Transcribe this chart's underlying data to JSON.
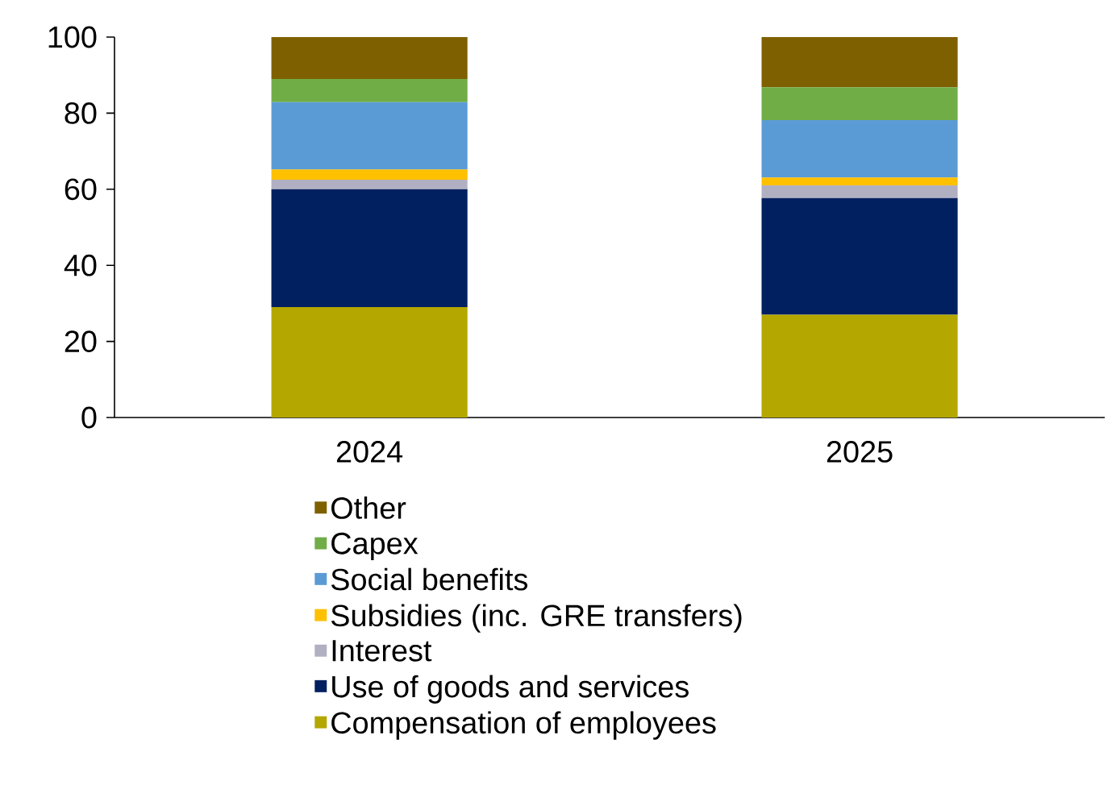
{
  "chart_data": {
    "type": "bar",
    "stacked": true,
    "categories": [
      "2024",
      "2025"
    ],
    "series": [
      {
        "name": "Compensation of employees",
        "color": "#b4a700",
        "values": [
          29,
          27
        ]
      },
      {
        "name": "Use of goods and services",
        "color": "#002060",
        "values": [
          31,
          30.7
        ]
      },
      {
        "name": "Interest",
        "color": "#b1b0c3",
        "values": [
          2.5,
          3.3
        ]
      },
      {
        "name": "Subsidies (inc. GRE transfers)",
        "color": "#ffc000",
        "values": [
          2.7,
          2.1
        ]
      },
      {
        "name": "Social benefits",
        "color": "#5b9bd5",
        "values": [
          17.7,
          15.1
        ]
      },
      {
        "name": "Capex",
        "color": "#70ad47",
        "values": [
          6.1,
          8.6
        ]
      },
      {
        "name": "Other",
        "color": "#7f6000",
        "values": [
          11,
          13.2
        ]
      }
    ],
    "ylim": [
      0,
      100
    ],
    "yticks": [
      0,
      20,
      40,
      60,
      80,
      100
    ],
    "grid": false,
    "legend": "bottom"
  }
}
